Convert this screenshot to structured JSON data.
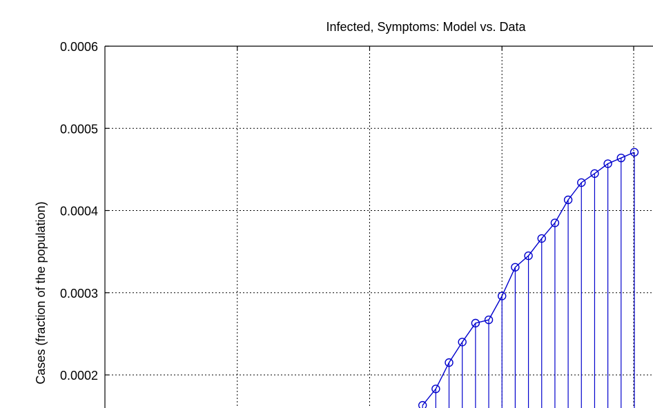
{
  "chart_data": {
    "type": "line",
    "title": "Infected, Symptoms: Model vs. Data",
    "ylabel": "Cases (fraction of the population)",
    "xlabel": "",
    "ylim": [
      0.0002,
      0.0006
    ],
    "yticks": [
      "0.0002",
      "0.0003",
      "0.0004",
      "0.0005",
      "0.0006"
    ],
    "xlim": [
      0,
      40.2
    ],
    "xgrid": [
      0,
      10,
      20,
      30,
      39.95
    ],
    "grid": true,
    "series": [
      {
        "color": "#0000cc",
        "marker": "circle",
        "stems": true,
        "x": [
          24,
          25,
          26,
          27,
          28,
          29,
          30,
          31,
          32,
          33,
          34,
          35,
          36,
          37,
          38,
          39,
          40
        ],
        "values": [
          0.000163,
          0.000183,
          0.000215,
          0.00024,
          0.000263,
          0.000267,
          0.000296,
          0.000331,
          0.000345,
          0.000366,
          0.000385,
          0.000413,
          0.000434,
          0.000445,
          0.000457,
          0.000464,
          0.000471
        ]
      }
    ]
  }
}
